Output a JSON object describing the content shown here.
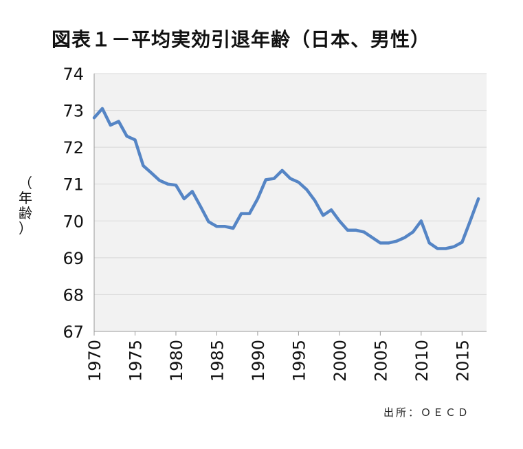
{
  "title": "図表１－平均実効引退年齢（日本、男性）",
  "source": "出所：ＯＥＣＤ",
  "chart_data": {
    "type": "line",
    "title": "図表１－平均実効引退年齢（日本、男性）",
    "ylabel_chars": [
      "（",
      "年",
      "齢",
      "）"
    ],
    "xlabel": "",
    "xlim": [
      1970,
      2018
    ],
    "ylim": [
      67,
      74
    ],
    "y_ticks": [
      74,
      73,
      72,
      71,
      70,
      69,
      68,
      67
    ],
    "x_ticks": [
      1970,
      1975,
      1980,
      1985,
      1990,
      1995,
      2000,
      2005,
      2010,
      2015
    ],
    "grid": "horizontal",
    "background": "#f2f2f2",
    "line_color": "#5585c5",
    "series": [
      {
        "x": [
          1970,
          1971,
          1972,
          1973,
          1974,
          1975,
          1976,
          1977,
          1978,
          1979,
          1980,
          1981,
          1982,
          1983,
          1984,
          1985,
          1986,
          1987,
          1988,
          1989,
          1990,
          1991,
          1992,
          1993,
          1994,
          1995,
          1996,
          1997,
          1998,
          1999,
          2000,
          2001,
          2002,
          2003,
          2004,
          2005,
          2006,
          2007,
          2008,
          2009,
          2010,
          2011,
          2012,
          2013,
          2014,
          2015,
          2016,
          2017
        ],
        "values": [
          72.8,
          73.05,
          72.6,
          72.7,
          72.3,
          72.2,
          71.5,
          71.3,
          71.1,
          71.0,
          70.97,
          70.6,
          70.8,
          70.4,
          69.98,
          69.85,
          69.85,
          69.8,
          70.2,
          70.2,
          70.6,
          71.12,
          71.15,
          71.37,
          71.15,
          71.05,
          70.85,
          70.55,
          70.15,
          70.3,
          70.0,
          69.75,
          69.75,
          69.7,
          69.55,
          69.4,
          69.4,
          69.45,
          69.55,
          69.7,
          70.0,
          69.4,
          69.25,
          69.25,
          69.3,
          69.42,
          70.0,
          70.6
        ]
      }
    ]
  }
}
